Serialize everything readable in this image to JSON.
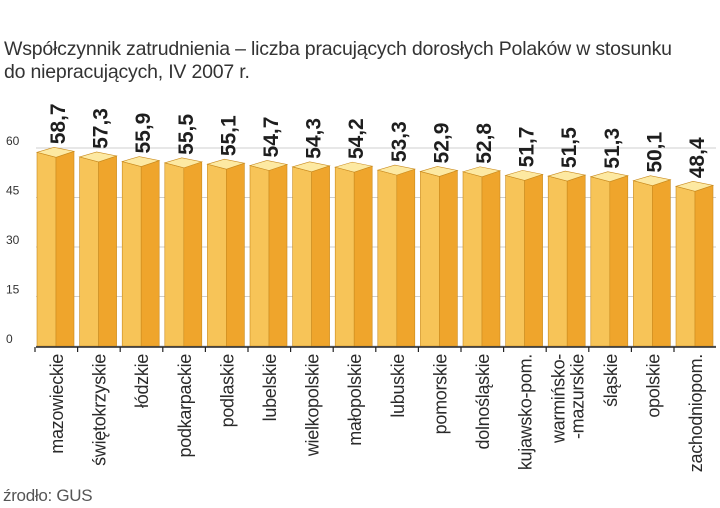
{
  "title_lines": [
    "Współczynnik  zatrudnienia – liczba pracujących dorosłych Polaków w stosunku",
    "do niepracujących, IV 2007 r."
  ],
  "source": "źrodło: GUS",
  "colors": {
    "bar_front": "#efa52c",
    "bar_side": "#f7c458",
    "bar_top": "#fde9a2",
    "bar_edge": "#c98a1e",
    "grid": "#cfcfcf",
    "axis": "#222222"
  },
  "chart_data": {
    "type": "bar",
    "title": "Współczynnik  zatrudnienia – liczba pracujących dorosłych Polaków w stosunku do niepracujących, IV 2007 r.",
    "xlabel": "",
    "ylabel": "",
    "ylim": [
      0,
      60
    ],
    "yticks": [
      "0",
      "15",
      "30",
      "45",
      "60"
    ],
    "grid": true,
    "categories": [
      "mazowieckie",
      "świętokrzyskie",
      "łódzkie",
      "podkarpackie",
      "podlaskie",
      "lubelskie",
      "wielkopolskie",
      "małopolskie",
      "lubuskie",
      "pomorskie",
      "dolnośląskie",
      "kujawsko-pom.",
      "warmińsko- -mazurskie",
      "śląskie",
      "opolskie",
      "zachodniopom."
    ],
    "category_lines": [
      [
        "mazowieckie"
      ],
      [
        "świętokrzyskie"
      ],
      [
        "łódzkie"
      ],
      [
        "podkarpackie"
      ],
      [
        "podlaskie"
      ],
      [
        "lubelskie"
      ],
      [
        "wielkopolskie"
      ],
      [
        "małopolskie"
      ],
      [
        "lubuskie"
      ],
      [
        "pomorskie"
      ],
      [
        "dolnośląskie"
      ],
      [
        "kujawsko-pom."
      ],
      [
        "warmińsko-",
        "-mazurskie"
      ],
      [
        "śląskie"
      ],
      [
        "opolskie"
      ],
      [
        "zachodniopom."
      ]
    ],
    "values": [
      58.7,
      57.3,
      55.9,
      55.5,
      55.1,
      54.7,
      54.3,
      54.2,
      53.3,
      52.9,
      52.8,
      51.7,
      51.5,
      51.3,
      50.1,
      48.4
    ],
    "value_labels": [
      "58,7",
      "57,3",
      "55,9",
      "55,5",
      "55,1",
      "54,7",
      "54,3",
      "54,2",
      "53,3",
      "52,9",
      "52,8",
      "51,7",
      "51,5",
      "51,3",
      "50,1",
      "48,4"
    ]
  }
}
